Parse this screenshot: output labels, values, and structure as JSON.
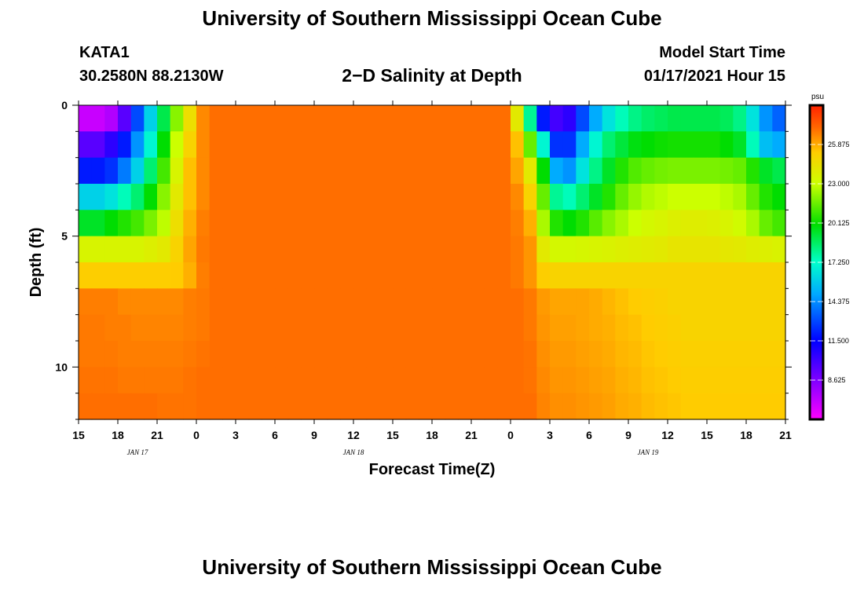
{
  "header": {
    "title": "University of Southern Mississippi Ocean Cube",
    "footer_title": "University of Southern Mississippi Ocean Cube",
    "station": "KATA1",
    "coordinates": "30.2580N 88.2130W",
    "subtitle": "2−D Salinity at Depth",
    "model_start_label": "Model Start Time",
    "model_start_value": "01/17/2021 Hour 15"
  },
  "chart_data": {
    "type": "heatmap",
    "title": "2−D Salinity at Depth",
    "xlabel": "Forecast Time(Z)",
    "ylabel": "Depth (ft)",
    "x_range_hours": [
      0,
      54
    ],
    "x_ticks": [
      "15",
      "18",
      "21",
      "0",
      "3",
      "6",
      "9",
      "12",
      "15",
      "18",
      "21",
      "0",
      "3",
      "6",
      "9",
      "12",
      "15",
      "18",
      "21"
    ],
    "date_labels": [
      {
        "label": "JAN 17",
        "hour": 4.5
      },
      {
        "label": "JAN 18",
        "hour": 21
      },
      {
        "label": "JAN 19",
        "hour": 43.5
      }
    ],
    "ylim": [
      0,
      12
    ],
    "y_ticks": [
      "0",
      "5",
      "10"
    ],
    "depth_levels_ft": [
      0.5,
      1.5,
      2.5,
      3.5,
      4.5,
      5.5,
      6.5,
      7.5,
      8.5,
      9.5,
      10.5,
      11.5
    ],
    "time_hours": [
      0,
      1,
      2,
      3,
      4,
      5,
      6,
      7,
      8,
      9,
      10,
      11,
      12,
      13,
      14,
      15,
      16,
      17,
      18,
      19,
      20,
      21,
      22,
      23,
      24,
      25,
      26,
      27,
      28,
      29,
      30,
      31,
      32,
      33,
      34,
      35,
      36,
      37,
      38,
      39,
      40,
      41,
      42,
      43,
      44,
      45,
      46,
      47,
      48,
      49,
      50,
      51,
      52,
      53
    ],
    "salinity_by_depth": [
      [
        7,
        7,
        7.5,
        9.5,
        13,
        16,
        19,
        22,
        24.5,
        26.5,
        27,
        27,
        27,
        27,
        27,
        27,
        27,
        27,
        27,
        27,
        27,
        27,
        27,
        27,
        27,
        27,
        27,
        27,
        27,
        27,
        27,
        27,
        27,
        24,
        18,
        12,
        10,
        10.5,
        13,
        15,
        16.5,
        17.5,
        18.2,
        18.6,
        18.8,
        19,
        19,
        19,
        19,
        18.8,
        18.2,
        16.5,
        14.5,
        13.5
      ],
      [
        9.5,
        9.5,
        10.5,
        12,
        14.5,
        17,
        20,
        23,
        25,
        26.5,
        27,
        27,
        27,
        27,
        27,
        27,
        27,
        27,
        27,
        27,
        27,
        27,
        27,
        27,
        27,
        27,
        27,
        27,
        27,
        27,
        27,
        27,
        27,
        25.5,
        21.5,
        17,
        12.5,
        12.5,
        15,
        17,
        18.5,
        19.2,
        19.8,
        20,
        20.2,
        20.3,
        20.3,
        20.3,
        20.3,
        20,
        19.5,
        17.5,
        15.5,
        15
      ],
      [
        12,
        12,
        12.5,
        14,
        16,
        18.5,
        21,
        23.5,
        25.5,
        26.5,
        27,
        27,
        27,
        27,
        27,
        27,
        27,
        27,
        27,
        27,
        27,
        27,
        27,
        27,
        27,
        27,
        27,
        27,
        27,
        27,
        27,
        27,
        27,
        26,
        24,
        20,
        15,
        14.5,
        16.5,
        18.2,
        19.5,
        20.5,
        21.2,
        21.5,
        21.7,
        21.8,
        21.8,
        21.8,
        21.8,
        21.7,
        21.5,
        20.5,
        19.5,
        19
      ],
      [
        16,
        16,
        16.5,
        17.5,
        18.5,
        20,
        22,
        24,
        25.5,
        26.5,
        27,
        27,
        27,
        27,
        27,
        27,
        27,
        27,
        27,
        27,
        27,
        27,
        27,
        27,
        27,
        27,
        27,
        27,
        27,
        27,
        27,
        27,
        27,
        26.5,
        25,
        21.5,
        18,
        17.5,
        18.5,
        19.5,
        20.5,
        21.5,
        22.2,
        22.6,
        22.8,
        23,
        23,
        23,
        23,
        22.8,
        22.5,
        21.5,
        20.5,
        20
      ],
      [
        19.5,
        19.5,
        20,
        20.5,
        21,
        21.8,
        22.8,
        24.5,
        25.8,
        26.7,
        27,
        27,
        27,
        27,
        27,
        27,
        27,
        27,
        27,
        27,
        27,
        27,
        27,
        27,
        27,
        27,
        27,
        27,
        27,
        27,
        27,
        27,
        27,
        26.7,
        25.8,
        22.5,
        20.5,
        20,
        20.5,
        21.3,
        22,
        22.5,
        23,
        23.3,
        23.5,
        23.7,
        23.8,
        23.8,
        23.7,
        23.5,
        23.2,
        22.5,
        21.5,
        21
      ],
      [
        23.5,
        23.5,
        23.5,
        23.5,
        23.5,
        23.7,
        24,
        25,
        26,
        26.8,
        27,
        27,
        27,
        27,
        27,
        27,
        27,
        27,
        27,
        27,
        27,
        27,
        27,
        27,
        27,
        27,
        27,
        27,
        27,
        27,
        27,
        27,
        27,
        26.8,
        26.3,
        24,
        23.3,
        23.3,
        23.4,
        23.5,
        23.6,
        23.7,
        23.8,
        23.9,
        24,
        24.2,
        24.2,
        24.2,
        24.2,
        24.1,
        24,
        23.8,
        23.7,
        23.6
      ],
      [
        25.2,
        25.2,
        25.2,
        25.2,
        25.2,
        25.2,
        25.2,
        25.3,
        25.8,
        26.7,
        27,
        27,
        27,
        27,
        27,
        27,
        27,
        27,
        27,
        27,
        27,
        27,
        27,
        27,
        27,
        27,
        27,
        27,
        27,
        27,
        27,
        27,
        27,
        26.8,
        26.3,
        25.2,
        25,
        25,
        25,
        25,
        25,
        25,
        25,
        25,
        25,
        25,
        25,
        25,
        25,
        25,
        25,
        25,
        25,
        25
      ],
      [
        26.7,
        26.7,
        26.7,
        26.5,
        26.5,
        26.5,
        26.5,
        26.5,
        26.7,
        26.8,
        27,
        27,
        27,
        27,
        27,
        27,
        27,
        27,
        27,
        27,
        27,
        27,
        27,
        27,
        27,
        27,
        27,
        27,
        27,
        27,
        27,
        27,
        27,
        27,
        26.8,
        26.2,
        26,
        26,
        26,
        25.9,
        25.7,
        25.5,
        25.3,
        25.2,
        25.1,
        25,
        25,
        25,
        25,
        25,
        25,
        25,
        25,
        25
      ],
      [
        26.8,
        26.8,
        26.7,
        26.7,
        26.6,
        26.6,
        26.6,
        26.6,
        26.7,
        26.8,
        27,
        27,
        27,
        27,
        27,
        27,
        27,
        27,
        27,
        27,
        27,
        27,
        27,
        27,
        27,
        27,
        27,
        27,
        27,
        27,
        27,
        27,
        27,
        27,
        26.8,
        26.3,
        26.1,
        26.1,
        26,
        25.9,
        25.8,
        25.6,
        25.5,
        25.3,
        25.2,
        25.1,
        25,
        25,
        25,
        25,
        25,
        25,
        25,
        25
      ],
      [
        26.8,
        26.8,
        26.8,
        26.7,
        26.7,
        26.7,
        26.7,
        26.7,
        26.8,
        26.9,
        27,
        27,
        27,
        27,
        27,
        27,
        27,
        27,
        27,
        27,
        27,
        27,
        27,
        27,
        27,
        27,
        27,
        27,
        27,
        27,
        27,
        27,
        27,
        27,
        26.9,
        26.4,
        26.2,
        26.2,
        26.1,
        26,
        25.9,
        25.7,
        25.6,
        25.4,
        25.3,
        25.2,
        25.1,
        25.1,
        25.1,
        25.1,
        25.1,
        25.1,
        25.1,
        25.1
      ],
      [
        26.9,
        26.9,
        26.9,
        26.8,
        26.8,
        26.8,
        26.8,
        26.8,
        26.9,
        27,
        27,
        27,
        27,
        27,
        27,
        27,
        27,
        27,
        27,
        27,
        27,
        27,
        27,
        27,
        27,
        27,
        27,
        27,
        27,
        27,
        27,
        27,
        27,
        27,
        26.9,
        26.5,
        26.3,
        26.3,
        26.2,
        26.1,
        26,
        25.8,
        25.7,
        25.5,
        25.4,
        25.3,
        25.2,
        25.2,
        25.2,
        25.2,
        25.2,
        25.2,
        25.2,
        25.2
      ],
      [
        27,
        27,
        27,
        27,
        27,
        27,
        26.9,
        26.9,
        26.9,
        27,
        27,
        27,
        27,
        27,
        27,
        27,
        27,
        27,
        27,
        27,
        27,
        27,
        27,
        27,
        27,
        27,
        27,
        27,
        27,
        27,
        27,
        27,
        27,
        27,
        27,
        26.6,
        26.4,
        26.4,
        26.3,
        26.2,
        26.1,
        25.9,
        25.8,
        25.6,
        25.5,
        25.4,
        25.3,
        25.3,
        25.3,
        25.3,
        25.3,
        25.3,
        25.3,
        25.3
      ]
    ],
    "colorbar": {
      "label": "psu",
      "range": [
        5.75,
        28.75
      ],
      "tick_values": [
        8.625,
        11.5,
        14.375,
        17.25,
        20.125,
        23.0,
        25.875
      ],
      "tick_labels": [
        "8.625",
        "11.500",
        "14.375",
        "17.250",
        "20.125",
        "23.000",
        "25.875"
      ]
    }
  }
}
